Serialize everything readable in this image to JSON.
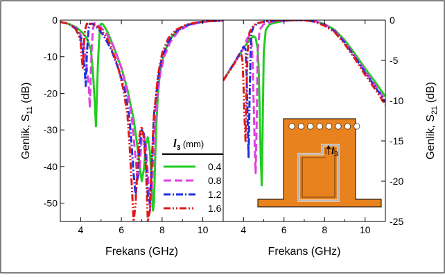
{
  "chart_data": [
    {
      "type": "line",
      "panel": "left",
      "xlabel": "Frekans (GHz)",
      "ylabel": {
        "base": "Genlik, S",
        "sub": "11",
        "unit": " (dB)"
      },
      "xlim": [
        3,
        11
      ],
      "ylim": [
        -55,
        0
      ],
      "xticks": [
        4,
        6,
        8,
        10
      ],
      "yticks": [
        0,
        -10,
        -20,
        -30,
        -40,
        -50
      ],
      "grid": false,
      "legend": {
        "title_var": "l",
        "title_sub": "3",
        "title_unit": " (mm)",
        "placement": "bottom-right"
      },
      "series": [
        {
          "name": "0.4",
          "color": "#22cc22",
          "dash": "solid",
          "x": [
            3,
            3.4,
            3.8,
            4.1,
            4.3,
            4.5,
            4.6,
            4.7,
            4.75,
            4.8,
            4.85,
            4.9,
            4.95,
            5.0,
            5.05,
            5.1,
            5.3,
            5.6,
            6.0,
            6.3,
            6.6,
            6.8,
            6.9,
            7.0,
            7.1,
            7.2,
            7.3,
            7.4,
            7.5,
            7.55,
            7.6,
            7.65,
            7.7,
            7.8,
            7.9,
            8.1,
            8.4,
            8.8,
            9.3,
            9.8,
            10.3,
            10.8,
            11
          ],
          "y": [
            -0.5,
            -1,
            -2,
            -3.5,
            -5,
            -8,
            -14,
            -23,
            -29,
            -20,
            -12,
            -6,
            -2,
            -1,
            -1,
            -1.2,
            -3,
            -7,
            -13,
            -19,
            -27,
            -35,
            -40,
            -44,
            -41,
            -34,
            -32,
            -36,
            -46,
            -52,
            -50,
            -40,
            -30,
            -20,
            -14,
            -9,
            -5,
            -2.5,
            -1.2,
            -0.6,
            -0.3,
            -0.2,
            -0.1
          ]
        },
        {
          "name": "0.8",
          "color": "#e040e0",
          "dash": "11,5",
          "x": [
            3,
            3.4,
            3.8,
            4.0,
            4.2,
            4.4,
            4.45,
            4.5,
            4.55,
            4.6,
            4.65,
            4.7,
            4.8,
            5.0,
            5.3,
            5.6,
            6.0,
            6.3,
            6.5,
            6.6,
            6.7,
            6.8,
            6.9,
            7.0,
            7.1,
            7.2,
            7.3,
            7.4,
            7.5,
            7.6,
            7.7,
            7.9,
            8.1,
            8.4,
            8.8,
            9.3,
            9.8,
            10.3,
            10.8,
            11
          ],
          "y": [
            -0.5,
            -1,
            -2.2,
            -4,
            -8,
            -18,
            -24,
            -14,
            -7,
            -3,
            -1,
            -0.8,
            -1,
            -2,
            -4,
            -7,
            -13,
            -20,
            -26,
            -32,
            -38,
            -44,
            -40,
            -32,
            -31,
            -34,
            -42,
            -52,
            -46,
            -34,
            -24,
            -15,
            -10,
            -6,
            -3,
            -1.4,
            -0.7,
            -0.3,
            -0.2,
            -0.1
          ]
        },
        {
          "name": "1.2",
          "color": "#1f2fe0",
          "dash": "10,3,2,3",
          "x": [
            3,
            3.4,
            3.8,
            4.0,
            4.1,
            4.2,
            4.25,
            4.3,
            4.35,
            4.4,
            4.45,
            4.5,
            4.6,
            4.8,
            5.1,
            5.5,
            5.9,
            6.2,
            6.4,
            6.5,
            6.6,
            6.7,
            6.8,
            6.9,
            7.0,
            7.1,
            7.2,
            7.3,
            7.4,
            7.5,
            7.6,
            7.8,
            8.0,
            8.3,
            8.7,
            9.2,
            9.7,
            10.2,
            10.7,
            11
          ],
          "y": [
            -0.5,
            -1,
            -2.5,
            -5,
            -8,
            -14,
            -18,
            -10,
            -5,
            -2,
            -1,
            -1,
            -1,
            -2,
            -4,
            -8,
            -14,
            -20,
            -27,
            -34,
            -42,
            -48,
            -42,
            -34,
            -30,
            -31,
            -38,
            -48,
            -50,
            -38,
            -26,
            -16,
            -10,
            -6,
            -3,
            -1.4,
            -0.7,
            -0.3,
            -0.2,
            -0.1
          ]
        },
        {
          "name": "1.6",
          "color": "#e01818",
          "dash": "10,3,2,3,2,3",
          "x": [
            3,
            3.4,
            3.7,
            3.9,
            4.0,
            4.05,
            4.1,
            4.15,
            4.2,
            4.3,
            4.5,
            4.7,
            5.0,
            5.4,
            5.8,
            6.1,
            6.3,
            6.4,
            6.5,
            6.6,
            6.7,
            6.8,
            6.9,
            7.0,
            7.1,
            7.2,
            7.3,
            7.4,
            7.5,
            7.6,
            7.8,
            8.0,
            8.3,
            8.7,
            9.2,
            9.7,
            10.2,
            10.7,
            11
          ],
          "y": [
            -0.5,
            -1,
            -2,
            -4,
            -6,
            -10,
            -13,
            -8,
            -3,
            -1,
            -1,
            -1.2,
            -2.5,
            -6,
            -12,
            -19,
            -26,
            -34,
            -44,
            -55,
            -50,
            -38,
            -31,
            -29,
            -32,
            -40,
            -55,
            -52,
            -38,
            -26,
            -15,
            -9,
            -5,
            -2.6,
            -1.2,
            -0.6,
            -0.3,
            -0.2,
            -0.1
          ]
        }
      ]
    },
    {
      "type": "line",
      "panel": "right",
      "xlabel": "Frekans (GHz)",
      "ylabel": {
        "base": "Genlik, S",
        "sub": "21",
        "unit": " (dB)"
      },
      "xlim": [
        3,
        11
      ],
      "ylim": [
        -25,
        0
      ],
      "xticks": [
        4,
        6,
        8,
        10
      ],
      "yticks": [
        0,
        -5,
        -10,
        -15,
        -20,
        -25
      ],
      "grid": false,
      "inset": {
        "label_var": "l",
        "label_sub": "3",
        "color": "#e8821e",
        "slot_count": 8
      },
      "series": [
        {
          "name": "0.4",
          "color": "#22cc22",
          "dash": "solid",
          "x": [
            3,
            3.5,
            4.0,
            4.3,
            4.5,
            4.6,
            4.7,
            4.75,
            4.8,
            4.85,
            4.9,
            4.95,
            5.0,
            5.1,
            5.3,
            5.6,
            6.0,
            6.5,
            7.0,
            7.5,
            8.0,
            8.5,
            9.0,
            9.5,
            10.0,
            10.5,
            11
          ],
          "y": [
            -7.5,
            -5.5,
            -3.5,
            -2.4,
            -2,
            -2.2,
            -3.5,
            -6,
            -11,
            -17,
            -20.5,
            -13,
            -4,
            -1.2,
            -0.5,
            -0.3,
            -0.1,
            0,
            0,
            -0.1,
            -0.5,
            -1.2,
            -2.5,
            -4.2,
            -6,
            -7.7,
            -9.5
          ]
        },
        {
          "name": "0.8",
          "color": "#e040e0",
          "dash": "11,5",
          "x": [
            3,
            3.5,
            4.0,
            4.2,
            4.3,
            4.4,
            4.45,
            4.5,
            4.55,
            4.6,
            4.65,
            4.7,
            4.8,
            5.0,
            5.4,
            6.0,
            6.5,
            7.0,
            7.5,
            8.0,
            8.5,
            9.0,
            9.5,
            10.0,
            10.5,
            11
          ],
          "y": [
            -7.5,
            -5.5,
            -3.5,
            -2.2,
            -2,
            -2.8,
            -5,
            -10,
            -15,
            -19,
            -13,
            -4,
            -1.2,
            -0.5,
            -0.2,
            -0.1,
            0,
            0,
            -0.1,
            -0.5,
            -1.3,
            -2.7,
            -4.5,
            -6.3,
            -8.1,
            -10
          ]
        },
        {
          "name": "1.2",
          "color": "#1f2fe0",
          "dash": "10,3,2,3",
          "x": [
            3,
            3.5,
            3.9,
            4.0,
            4.1,
            4.15,
            4.2,
            4.25,
            4.3,
            4.35,
            4.4,
            4.5,
            4.7,
            5.0,
            5.5,
            6.0,
            6.5,
            7.0,
            7.5,
            8.0,
            8.5,
            9.0,
            9.5,
            10.0,
            10.5,
            11
          ],
          "y": [
            -7.5,
            -5.5,
            -3.8,
            -3.3,
            -3.6,
            -6,
            -12,
            -17,
            -10,
            -4,
            -1.5,
            -0.8,
            -0.4,
            -0.2,
            -0.1,
            0,
            0,
            0,
            -0.2,
            -0.6,
            -1.4,
            -2.8,
            -4.6,
            -6.5,
            -8.3,
            -10.2
          ]
        },
        {
          "name": "1.6",
          "color": "#e01818",
          "dash": "10,3,2,3,2,3",
          "x": [
            3,
            3.5,
            3.8,
            3.9,
            3.95,
            4.0,
            4.05,
            4.1,
            4.15,
            4.2,
            4.3,
            4.5,
            4.8,
            5.2,
            5.7,
            6.2,
            6.8,
            7.4,
            8.0,
            8.5,
            9.0,
            9.5,
            10.0,
            10.5,
            11
          ],
          "y": [
            -7.5,
            -5.6,
            -4.4,
            -4.3,
            -5,
            -8,
            -12,
            -15,
            -9,
            -4,
            -1.5,
            -0.6,
            -0.3,
            -0.1,
            0,
            0,
            0,
            -0.1,
            -0.7,
            -1.5,
            -3,
            -4.8,
            -6.8,
            -8.6,
            -10.5
          ]
        }
      ]
    }
  ]
}
